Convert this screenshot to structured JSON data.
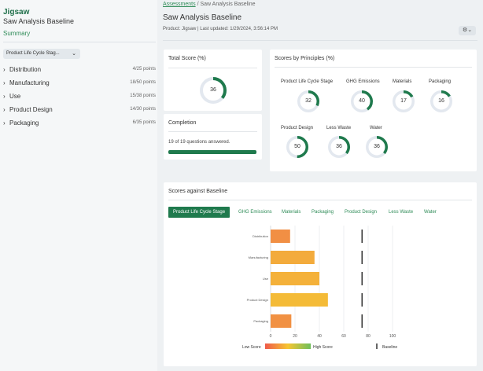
{
  "sidebar": {
    "brand": "Jigsaw",
    "subtitle": "Saw Analysis Baseline",
    "summary": "Summary",
    "dropdown": "Product Life Cycle Stag...",
    "items": [
      {
        "label": "Distribution",
        "points": "4/25 points"
      },
      {
        "label": "Manufacturing",
        "points": "18/50 points"
      },
      {
        "label": "Use",
        "points": "15/38 points"
      },
      {
        "label": "Product Design",
        "points": "14/30 points"
      },
      {
        "label": "Packaging",
        "points": "6/35 points"
      }
    ]
  },
  "header": {
    "breadcrumb_link": "Assessments",
    "breadcrumb_sep": "/",
    "breadcrumb_current": "Saw Analysis Baseline",
    "title": "Saw Analysis Baseline",
    "meta": "Product: Jigsaw | Last updated: 1/29/2024, 3:56:14 PM",
    "settings_icon": "gear-icon"
  },
  "total_score": {
    "title": "Total Score (%)",
    "value": 36
  },
  "completion": {
    "title": "Completion",
    "text": "19 of 19 questions answered.",
    "fraction": 1.0
  },
  "principles": {
    "title": "Scores by Principles (%)",
    "items": [
      {
        "label": "Product Life Cycle Stage",
        "value": 32
      },
      {
        "label": "GHG Emissions",
        "value": 40
      },
      {
        "label": "Materials",
        "value": 17
      },
      {
        "label": "Packaging",
        "value": 16
      },
      {
        "label": "Product Design",
        "value": 50
      },
      {
        "label": "Less Waste",
        "value": 36
      },
      {
        "label": "Water",
        "value": 36
      }
    ]
  },
  "baseline": {
    "title": "Scores against Baseline",
    "tabs": [
      "Product Life Cycle Stage",
      "GHG Emissions",
      "Materials",
      "Packaging",
      "Product Design",
      "Less Waste",
      "Water"
    ],
    "legend_low": "Low Score",
    "legend_high": "High Score",
    "legend_baseline": "Baseline"
  },
  "colors": {
    "accent": "#1f7a4d",
    "gauge_track": "#e3e8ef"
  },
  "chart_data": {
    "type": "bar",
    "orientation": "horizontal",
    "categories": [
      "Distribution",
      "Manufacturing",
      "Use",
      "Product Design",
      "Packaging"
    ],
    "values": [
      16,
      36,
      40,
      47,
      17
    ],
    "baseline": [
      75,
      75,
      75,
      75,
      75
    ],
    "xlim": [
      0,
      100
    ],
    "xticks": [
      "0",
      "20",
      "40",
      "60",
      "80",
      "100"
    ],
    "grid": true,
    "legend_placement": "bottom"
  }
}
